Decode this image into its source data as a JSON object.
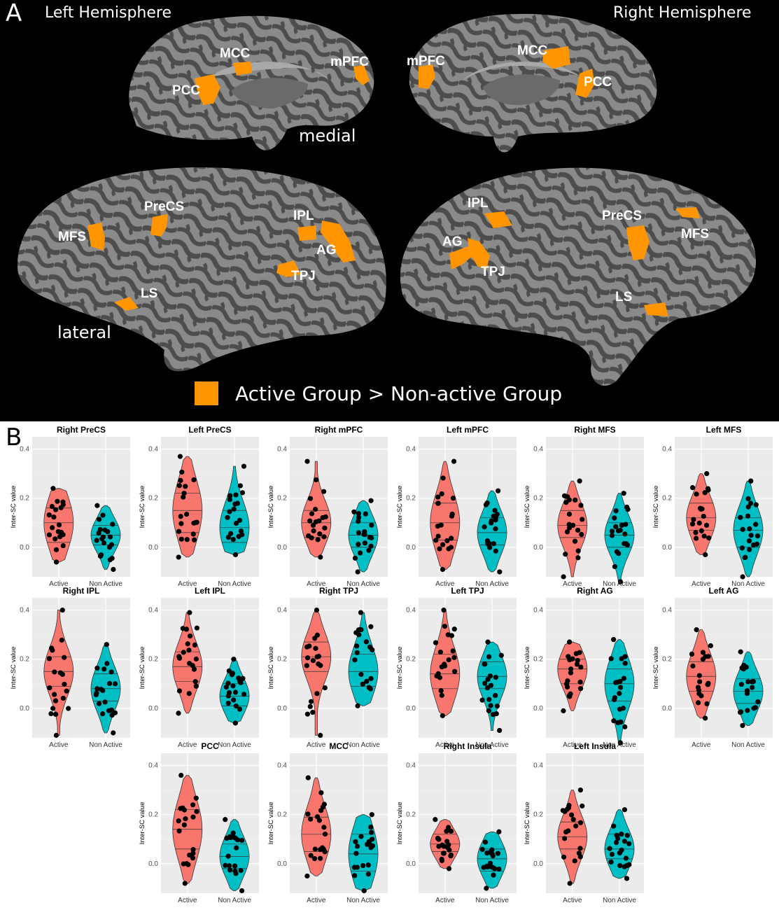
{
  "panel_a": {
    "letter": "A",
    "left_title": "Left Hemisphere",
    "right_title": "Right Hemisphere",
    "medial_label": "medial",
    "lateral_label": "lateral",
    "legend_text": "Active Group > Non-active Group",
    "legend_color": "#ff9500",
    "regions": {
      "lm_mcc": "MCC",
      "lm_pcc": "PCC",
      "lm_mpfc": "mPFC",
      "rm_mpfc": "mPFC",
      "rm_mcc": "MCC",
      "rm_pcc": "PCC",
      "ll_precs": "PreCS",
      "ll_mfs": "MFS",
      "ll_ipl": "IPL",
      "ll_ag": "AG",
      "ll_tpj": "TPJ",
      "ll_ls": "LS",
      "rl_ipl": "IPL",
      "rl_ag": "AG",
      "rl_tpj": "TPJ",
      "rl_precs": "PreCS",
      "rl_mfs": "MFS",
      "rl_ls": "LS"
    }
  },
  "panel_b": {
    "letter": "B",
    "colors": {
      "active": "#f8766d",
      "non_active": "#00bfc4",
      "panel_bg": "#ebebeb"
    }
  },
  "chart_data": [
    {
      "type": "violin",
      "title": "Right PreCS",
      "ylabel": "Inter-SC value",
      "categories": [
        "Active",
        "Non Active"
      ],
      "yticks": [
        "0.0",
        "0.2",
        "0.4"
      ],
      "ylim": [
        -0.12,
        0.45
      ],
      "series": [
        {
          "name": "Active",
          "min": -0.06,
          "max": 0.24,
          "q1": 0.02,
          "median": 0.1,
          "q3": 0.16
        },
        {
          "name": "Non Active",
          "min": -0.09,
          "max": 0.17,
          "q1": 0.01,
          "median": 0.05,
          "q3": 0.09
        }
      ]
    },
    {
      "type": "violin",
      "title": "Left PreCS",
      "ylabel": "Inter-SC value",
      "categories": [
        "Active",
        "Non Active"
      ],
      "yticks": [
        "0.0",
        "0.2",
        "0.4"
      ],
      "ylim": [
        -0.12,
        0.45
      ],
      "series": [
        {
          "name": "Active",
          "min": -0.04,
          "max": 0.37,
          "q1": 0.06,
          "median": 0.15,
          "q3": 0.22
        },
        {
          "name": "Non Active",
          "min": -0.03,
          "max": 0.33,
          "q1": 0.02,
          "median": 0.08,
          "q3": 0.15
        }
      ]
    },
    {
      "type": "violin",
      "title": "Right mPFC",
      "ylabel": "Inter-SC value",
      "categories": [
        "Active",
        "Non Active"
      ],
      "yticks": [
        "0.0",
        "0.2",
        "0.4"
      ],
      "ylim": [
        -0.12,
        0.45
      ],
      "series": [
        {
          "name": "Active",
          "min": -0.04,
          "max": 0.35,
          "q1": 0.04,
          "median": 0.1,
          "q3": 0.15
        },
        {
          "name": "Non Active",
          "min": -0.1,
          "max": 0.19,
          "q1": 0.0,
          "median": 0.05,
          "q3": 0.1
        }
      ]
    },
    {
      "type": "violin",
      "title": "Left mPFC",
      "ylabel": "Inter-SC value",
      "categories": [
        "Active",
        "Non Active"
      ],
      "yticks": [
        "0.0",
        "0.2",
        "0.4"
      ],
      "ylim": [
        -0.12,
        0.45
      ],
      "series": [
        {
          "name": "Active",
          "min": -0.09,
          "max": 0.35,
          "q1": 0.03,
          "median": 0.1,
          "q3": 0.18
        },
        {
          "name": "Non Active",
          "min": -0.1,
          "max": 0.23,
          "q1": 0.01,
          "median": 0.06,
          "q3": 0.12
        }
      ]
    },
    {
      "type": "violin",
      "title": "Right MFS",
      "ylabel": "Inter-SC value",
      "categories": [
        "Active",
        "Non Active"
      ],
      "yticks": [
        "0.0",
        "0.2",
        "0.4"
      ],
      "ylim": [
        -0.12,
        0.45
      ],
      "series": [
        {
          "name": "Active",
          "min": -0.12,
          "max": 0.27,
          "q1": 0.04,
          "median": 0.09,
          "q3": 0.15
        },
        {
          "name": "Non Active",
          "min": -0.14,
          "max": 0.22,
          "q1": 0.0,
          "median": 0.05,
          "q3": 0.1
        }
      ]
    },
    {
      "type": "violin",
      "title": "Left MFS",
      "ylabel": "Inter-SC value",
      "categories": [
        "Active",
        "Non Active"
      ],
      "yticks": [
        "0.0",
        "0.2",
        "0.4"
      ],
      "ylim": [
        -0.12,
        0.45
      ],
      "series": [
        {
          "name": "Active",
          "min": -0.03,
          "max": 0.3,
          "q1": 0.07,
          "median": 0.12,
          "q3": 0.18
        },
        {
          "name": "Non Active",
          "min": -0.12,
          "max": 0.27,
          "q1": 0.0,
          "median": 0.07,
          "q3": 0.12
        }
      ]
    },
    {
      "type": "violin",
      "title": "Right IPL",
      "ylabel": "Inter-SC value",
      "categories": [
        "Active",
        "Non Active"
      ],
      "yticks": [
        "0.0",
        "0.2",
        "0.4"
      ],
      "ylim": [
        -0.12,
        0.45
      ],
      "series": [
        {
          "name": "Active",
          "min": -0.11,
          "max": 0.4,
          "q1": 0.09,
          "median": 0.15,
          "q3": 0.21
        },
        {
          "name": "Non Active",
          "min": -0.1,
          "max": 0.26,
          "q1": 0.03,
          "median": 0.08,
          "q3": 0.14
        }
      ]
    },
    {
      "type": "violin",
      "title": "Left IPL",
      "ylabel": "Inter-SC value",
      "categories": [
        "Active",
        "Non Active"
      ],
      "yticks": [
        "0.0",
        "0.2",
        "0.4"
      ],
      "ylim": [
        -0.12,
        0.45
      ],
      "series": [
        {
          "name": "Active",
          "min": -0.02,
          "max": 0.39,
          "q1": 0.11,
          "median": 0.17,
          "q3": 0.23
        },
        {
          "name": "Non Active",
          "min": -0.06,
          "max": 0.2,
          "q1": 0.01,
          "median": 0.05,
          "q3": 0.1
        }
      ]
    },
    {
      "type": "violin",
      "title": "Right TPJ",
      "ylabel": "Inter-SC value",
      "categories": [
        "Active",
        "Non Active"
      ],
      "yticks": [
        "0.0",
        "0.2",
        "0.4"
      ],
      "ylim": [
        -0.12,
        0.45
      ],
      "series": [
        {
          "name": "Active",
          "min": -0.11,
          "max": 0.4,
          "q1": 0.15,
          "median": 0.21,
          "q3": 0.27
        },
        {
          "name": "Non Active",
          "min": 0.01,
          "max": 0.39,
          "q1": 0.09,
          "median": 0.15,
          "q3": 0.22
        }
      ]
    },
    {
      "type": "violin",
      "title": "Left TPJ",
      "ylabel": "Inter-SC value",
      "categories": [
        "Active",
        "Non Active"
      ],
      "yticks": [
        "0.0",
        "0.2",
        "0.4"
      ],
      "ylim": [
        -0.12,
        0.45
      ],
      "series": [
        {
          "name": "Active",
          "min": -0.03,
          "max": 0.4,
          "q1": 0.08,
          "median": 0.14,
          "q3": 0.22
        },
        {
          "name": "Non Active",
          "min": -0.09,
          "max": 0.27,
          "q1": 0.08,
          "median": 0.13,
          "q3": 0.19
        }
      ]
    },
    {
      "type": "violin",
      "title": "Right AG",
      "ylabel": "Inter-SC value",
      "categories": [
        "Active",
        "Non Active"
      ],
      "yticks": [
        "0.0",
        "0.2",
        "0.4"
      ],
      "ylim": [
        -0.12,
        0.45
      ],
      "series": [
        {
          "name": "Active",
          "min": -0.01,
          "max": 0.27,
          "q1": 0.1,
          "median": 0.16,
          "q3": 0.2
        },
        {
          "name": "Non Active",
          "min": -0.14,
          "max": 0.28,
          "q1": 0.03,
          "median": 0.1,
          "q3": 0.16
        }
      ]
    },
    {
      "type": "violin",
      "title": "Left AG",
      "ylabel": "Inter-SC value",
      "categories": [
        "Active",
        "Non Active"
      ],
      "yticks": [
        "0.0",
        "0.2",
        "0.4"
      ],
      "ylim": [
        -0.12,
        0.45
      ],
      "series": [
        {
          "name": "Active",
          "min": -0.04,
          "max": 0.32,
          "q1": 0.07,
          "median": 0.13,
          "q3": 0.19
        },
        {
          "name": "Non Active",
          "min": -0.07,
          "max": 0.23,
          "q1": 0.02,
          "median": 0.07,
          "q3": 0.12
        }
      ]
    },
    {
      "type": "violin",
      "title": "PCC",
      "ylabel": "Inter-SC value",
      "categories": [
        "Active",
        "Non Active"
      ],
      "yticks": [
        "0.0",
        "0.2",
        "0.4"
      ],
      "ylim": [
        -0.12,
        0.45
      ],
      "series": [
        {
          "name": "Active",
          "min": -0.08,
          "max": 0.36,
          "q1": 0.06,
          "median": 0.14,
          "q3": 0.22
        },
        {
          "name": "Non Active",
          "min": -0.11,
          "max": 0.18,
          "q1": -0.02,
          "median": 0.03,
          "q3": 0.08
        }
      ]
    },
    {
      "type": "violin",
      "title": "MCC",
      "ylabel": "Inter-SC value",
      "categories": [
        "Active",
        "Non Active"
      ],
      "yticks": [
        "0.0",
        "0.2",
        "0.4"
      ],
      "ylim": [
        -0.12,
        0.45
      ],
      "series": [
        {
          "name": "Active",
          "min": -0.05,
          "max": 0.35,
          "q1": 0.05,
          "median": 0.12,
          "q3": 0.19
        },
        {
          "name": "Non Active",
          "min": -0.11,
          "max": 0.2,
          "q1": -0.03,
          "median": 0.04,
          "q3": 0.12
        }
      ]
    },
    {
      "type": "violin",
      "title": "Right Insula",
      "ylabel": "Inter-SC value",
      "categories": [
        "Active",
        "Non Active"
      ],
      "yticks": [
        "0.0",
        "0.2",
        "0.4"
      ],
      "ylim": [
        -0.12,
        0.45
      ],
      "series": [
        {
          "name": "Active",
          "min": -0.02,
          "max": 0.18,
          "q1": 0.05,
          "median": 0.08,
          "q3": 0.12
        },
        {
          "name": "Non Active",
          "min": -0.1,
          "max": 0.13,
          "q1": -0.03,
          "median": 0.02,
          "q3": 0.06
        }
      ]
    },
    {
      "type": "violin",
      "title": "Left Insula",
      "ylabel": "Inter-SC value",
      "categories": [
        "Active",
        "Non Active"
      ],
      "yticks": [
        "0.0",
        "0.2",
        "0.4"
      ],
      "ylim": [
        -0.12,
        0.45
      ],
      "series": [
        {
          "name": "Active",
          "min": -0.08,
          "max": 0.3,
          "q1": 0.06,
          "median": 0.11,
          "q3": 0.17
        },
        {
          "name": "Non Active",
          "min": -0.06,
          "max": 0.22,
          "q1": 0.02,
          "median": 0.06,
          "q3": 0.12
        }
      ]
    }
  ]
}
